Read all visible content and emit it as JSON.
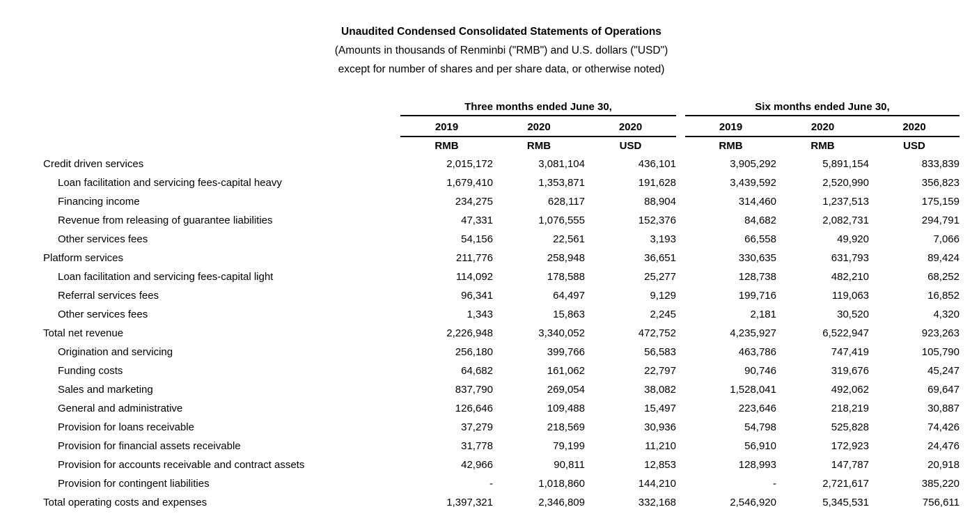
{
  "header": {
    "title": "Unaudited Condensed Consolidated Statements of Operations",
    "subtitle_line1": "(Amounts in thousands of Renminbi (\"RMB\") and U.S. dollars (\"USD\")",
    "subtitle_line2": "except for number of shares and per share data, or otherwise noted)"
  },
  "colors": {
    "text": "#000000",
    "background": "#ffffff",
    "rule_lines": "#000000"
  },
  "table": {
    "groups": [
      {
        "label": "Three months ended June 30,",
        "years": [
          "2019",
          "2020",
          "2020"
        ],
        "currencies": [
          "RMB",
          "RMB",
          "USD"
        ]
      },
      {
        "label": "Six months ended June 30,",
        "years": [
          "2019",
          "2020",
          "2020"
        ],
        "currencies": [
          "RMB",
          "RMB",
          "USD"
        ]
      }
    ],
    "rows": [
      {
        "label": "Credit driven services",
        "bold": true,
        "indent": false,
        "values": [
          "2,015,172",
          "3,081,104",
          "436,101",
          "3,905,292",
          "5,891,154",
          "833,839"
        ]
      },
      {
        "label": "Loan facilitation and servicing fees-capital heavy",
        "bold": false,
        "indent": true,
        "values": [
          "1,679,410",
          "1,353,871",
          "191,628",
          "3,439,592",
          "2,520,990",
          "356,823"
        ]
      },
      {
        "label": "Financing income",
        "bold": false,
        "indent": true,
        "values": [
          "234,275",
          "628,117",
          "88,904",
          "314,460",
          "1,237,513",
          "175,159"
        ]
      },
      {
        "label": "Revenue from releasing of guarantee liabilities",
        "bold": false,
        "indent": true,
        "values": [
          "47,331",
          "1,076,555",
          "152,376",
          "84,682",
          "2,082,731",
          "294,791"
        ]
      },
      {
        "label": "Other services fees",
        "bold": false,
        "indent": true,
        "values": [
          "54,156",
          "22,561",
          "3,193",
          "66,558",
          "49,920",
          "7,066"
        ]
      },
      {
        "label": "Platform services",
        "bold": true,
        "indent": false,
        "values": [
          "211,776",
          "258,948",
          "36,651",
          "330,635",
          "631,793",
          "89,424"
        ]
      },
      {
        "label": "Loan facilitation and servicing fees-capital light",
        "bold": false,
        "indent": true,
        "values": [
          "114,092",
          "178,588",
          "25,277",
          "128,738",
          "482,210",
          "68,252"
        ]
      },
      {
        "label": "Referral services fees",
        "bold": false,
        "indent": true,
        "values": [
          "96,341",
          "64,497",
          "9,129",
          "199,716",
          "119,063",
          "16,852"
        ]
      },
      {
        "label": "Other services fees",
        "bold": false,
        "indent": true,
        "values": [
          "1,343",
          "15,863",
          "2,245",
          "2,181",
          "30,520",
          "4,320"
        ]
      },
      {
        "label": "Total net revenue",
        "bold": true,
        "indent": false,
        "values": [
          "2,226,948",
          "3,340,052",
          "472,752",
          "4,235,927",
          "6,522,947",
          "923,263"
        ]
      },
      {
        "label": "Origination and servicing",
        "bold": false,
        "indent": true,
        "values": [
          "256,180",
          "399,766",
          "56,583",
          "463,786",
          "747,419",
          "105,790"
        ]
      },
      {
        "label": "Funding costs",
        "bold": false,
        "indent": true,
        "values": [
          "64,682",
          "161,062",
          "22,797",
          "90,746",
          "319,676",
          "45,247"
        ]
      },
      {
        "label": "Sales and marketing",
        "bold": false,
        "indent": true,
        "values": [
          "837,790",
          "269,054",
          "38,082",
          "1,528,041",
          "492,062",
          "69,647"
        ]
      },
      {
        "label": "General and administrative",
        "bold": false,
        "indent": true,
        "values": [
          "126,646",
          "109,488",
          "15,497",
          "223,646",
          "218,219",
          "30,887"
        ]
      },
      {
        "label": "Provision for loans receivable",
        "bold": false,
        "indent": true,
        "values": [
          "37,279",
          "218,569",
          "30,936",
          "54,798",
          "525,828",
          "74,426"
        ]
      },
      {
        "label": "Provision for financial assets receivable",
        "bold": false,
        "indent": true,
        "values": [
          "31,778",
          "79,199",
          "11,210",
          "56,910",
          "172,923",
          "24,476"
        ]
      },
      {
        "label": "Provision for accounts receivable and contract assets",
        "bold": false,
        "indent": true,
        "values": [
          "42,966",
          "90,811",
          "12,853",
          "128,993",
          "147,787",
          "20,918"
        ]
      },
      {
        "label": "Provision for contingent liabilities",
        "bold": false,
        "indent": true,
        "values": [
          "-",
          "1,018,860",
          "144,210",
          "-",
          "2,721,617",
          "385,220"
        ]
      },
      {
        "label": "Total operating costs and expenses",
        "bold": true,
        "indent": false,
        "values": [
          "1,397,321",
          "2,346,809",
          "332,168",
          "2,546,920",
          "5,345,531",
          "756,611"
        ]
      }
    ]
  }
}
